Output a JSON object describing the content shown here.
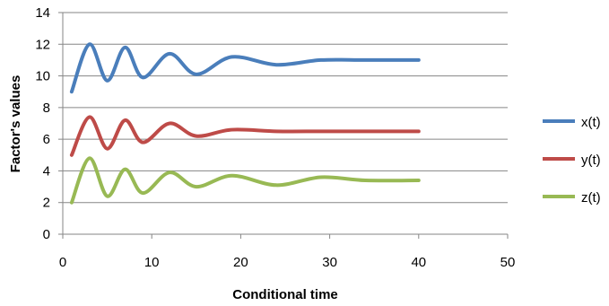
{
  "chart_data": {
    "type": "line",
    "xlabel": "Conditional time",
    "ylabel": "Factor's values",
    "xlim": [
      0,
      50
    ],
    "ylim": [
      0,
      14
    ],
    "x_ticks": [
      0,
      10,
      20,
      30,
      40,
      50
    ],
    "y_ticks": [
      0,
      2,
      4,
      6,
      8,
      10,
      12,
      14
    ],
    "grid": "horizontal",
    "legend_position": "right",
    "colors": {
      "x": "#4a7ebb",
      "y": "#be4b48",
      "z": "#98b954"
    },
    "series": [
      {
        "name": "x(t)",
        "color": "#4a7ebb",
        "x": [
          1,
          3,
          5,
          7,
          9,
          12,
          15,
          19,
          24,
          29,
          34,
          40
        ],
        "values": [
          9.0,
          12.0,
          9.7,
          11.8,
          9.9,
          11.4,
          10.1,
          11.2,
          10.7,
          11.0,
          11.0,
          11.0
        ]
      },
      {
        "name": "y(t)",
        "color": "#be4b48",
        "x": [
          1,
          3,
          5,
          7,
          9,
          12,
          15,
          19,
          24,
          29,
          34,
          40
        ],
        "values": [
          5.0,
          7.4,
          5.4,
          7.2,
          5.8,
          7.0,
          6.2,
          6.6,
          6.5,
          6.5,
          6.5,
          6.5
        ]
      },
      {
        "name": "z(t)",
        "color": "#98b954",
        "x": [
          1,
          3,
          5,
          7,
          9,
          12,
          15,
          19,
          24,
          29,
          34,
          40
        ],
        "values": [
          2.0,
          4.8,
          2.4,
          4.1,
          2.6,
          3.9,
          3.0,
          3.7,
          3.1,
          3.6,
          3.4,
          3.4
        ]
      }
    ]
  }
}
